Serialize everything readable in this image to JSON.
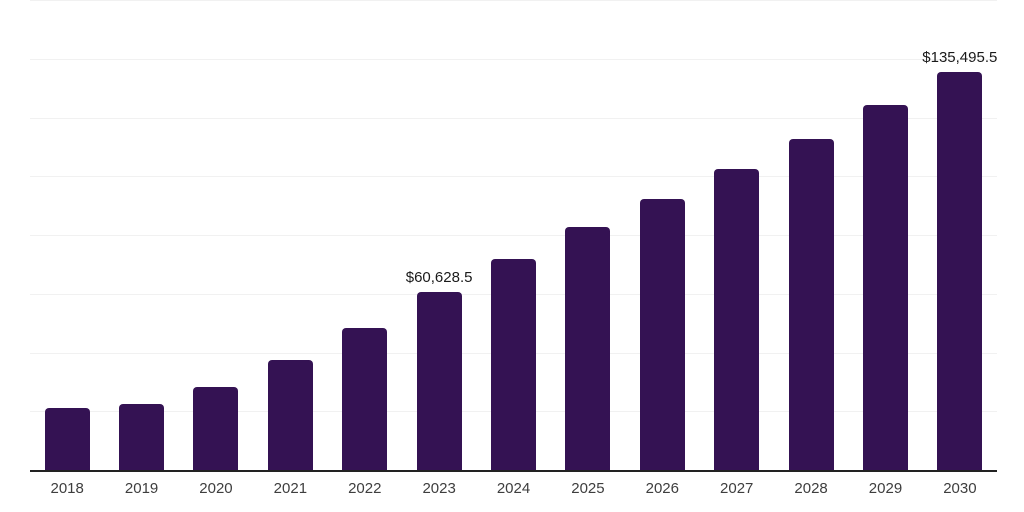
{
  "chart_data": {
    "type": "bar",
    "title": "",
    "xlabel": "",
    "ylabel": "",
    "categories": [
      "2018",
      "2019",
      "2020",
      "2021",
      "2022",
      "2023",
      "2024",
      "2025",
      "2026",
      "2027",
      "2028",
      "2029",
      "2030"
    ],
    "values": [
      21100,
      22500,
      28200,
      37400,
      48200,
      60628.5,
      71700,
      82600,
      92400,
      102600,
      112800,
      124100,
      135495.5
    ],
    "data_labels": [
      {
        "category": "2023",
        "index": 5,
        "text": "$60,628.5"
      },
      {
        "category": "2030",
        "index": 12,
        "text": "$135,495.5"
      }
    ],
    "ylim": [
      0,
      160000
    ],
    "gridline_step": 20000,
    "grid": "horizontal",
    "legend": "none",
    "y_axis_labels_visible": false
  },
  "colors": {
    "bar": "#341253",
    "gridline": "#f1f1f1",
    "axis": "#222222",
    "tick_label": "#3e3e3e",
    "data_label": "#1a1a1a",
    "background": "#ffffff"
  }
}
